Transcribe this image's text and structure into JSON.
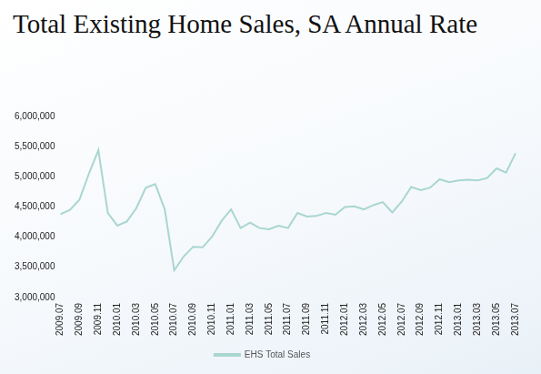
{
  "chart_data": {
    "type": "line",
    "title": "Total Existing Home Sales, SA Annual Rate",
    "categories": [
      "2009.07",
      null,
      "2009.09",
      null,
      "2009.11",
      null,
      "2010.01",
      null,
      "2010.03",
      null,
      "2010.05",
      null,
      "2010.07",
      null,
      "2010.09",
      null,
      "2010.11",
      null,
      "2011.01",
      null,
      "2011.03",
      null,
      "2011.05",
      null,
      "2011.07",
      null,
      "2011.09",
      null,
      "2011.11",
      null,
      "2012.01",
      null,
      "2012.03",
      null,
      "2012.05",
      null,
      "2012.07",
      null,
      "2012.09",
      null,
      "2012.11",
      null,
      "2013.01",
      null,
      "2013.03",
      null,
      "2013.05",
      null,
      "2013.07"
    ],
    "series": [
      {
        "name": "EHS Total Sales",
        "color": "#a9d6d1",
        "values": [
          4380000,
          4450000,
          4620000,
          5050000,
          5440000,
          4400000,
          4190000,
          4260000,
          4480000,
          4820000,
          4880000,
          4460000,
          3450000,
          3680000,
          3840000,
          3830000,
          4010000,
          4270000,
          4460000,
          4150000,
          4240000,
          4150000,
          4130000,
          4190000,
          4150000,
          4400000,
          4340000,
          4350000,
          4400000,
          4370000,
          4500000,
          4510000,
          4460000,
          4530000,
          4580000,
          4410000,
          4590000,
          4830000,
          4780000,
          4820000,
          4960000,
          4910000,
          4940000,
          4950000,
          4940000,
          4980000,
          5140000,
          5070000,
          5390000
        ]
      }
    ],
    "ylim": [
      3000000,
      6000000
    ],
    "yticks": [
      {
        "value": 3000000,
        "label": "3,000,000"
      },
      {
        "value": 3500000,
        "label": "3,500,000"
      },
      {
        "value": 4000000,
        "label": "4,000,000"
      },
      {
        "value": 4500000,
        "label": "4,500,000"
      },
      {
        "value": 5000000,
        "label": "5,000,000"
      },
      {
        "value": 5500000,
        "label": "5,500,000"
      },
      {
        "value": 6000000,
        "label": "6,000,000"
      }
    ],
    "grid": false,
    "legend": "bottom"
  }
}
